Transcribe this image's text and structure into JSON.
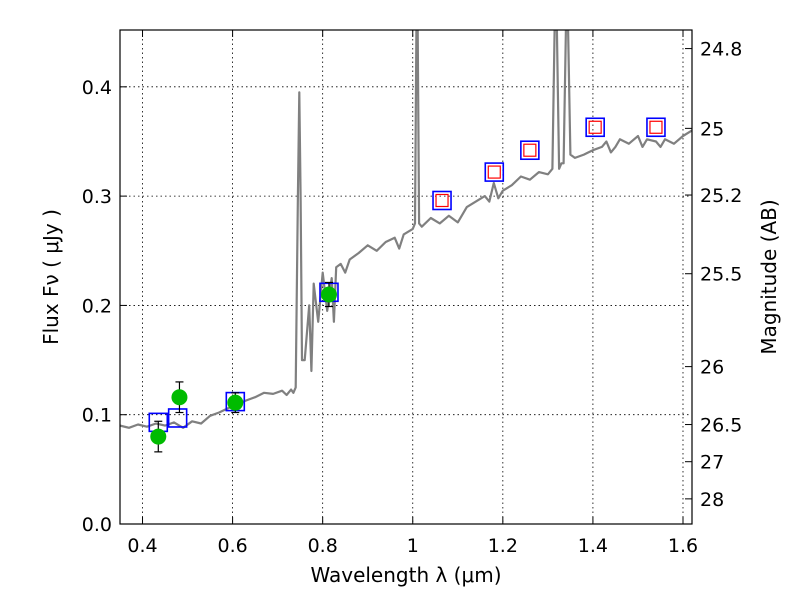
{
  "chart_data": {
    "type": "line",
    "xlabel": "Wavelength  λ (μm)",
    "ylabel": "Flux  Fν  ( μJy )",
    "y2label": "Magnitude (AB)",
    "xlim": [
      0.35,
      1.62
    ],
    "ylim": [
      0.0,
      0.452
    ],
    "grid": true,
    "x_ticks": [
      0.4,
      0.6,
      0.8,
      1.0,
      1.2,
      1.4,
      1.6
    ],
    "x_tick_labels": [
      "0.4",
      "0.6",
      "0.8",
      "1",
      "1.2",
      "1.4",
      "1.6"
    ],
    "y_ticks": [
      0.0,
      0.1,
      0.2,
      0.3,
      0.4
    ],
    "y_tick_labels": [
      "0.0",
      "0.1",
      "0.2",
      "0.3",
      "0.4"
    ],
    "y2_ticks": [
      {
        "label": "24.8",
        "flux": 0.435
      },
      {
        "label": "25",
        "flux": 0.362
      },
      {
        "label": "25.2",
        "flux": 0.301
      },
      {
        "label": "25.5",
        "flux": 0.229
      },
      {
        "label": "26",
        "flux": 0.144
      },
      {
        "label": "26.5",
        "flux": 0.091
      },
      {
        "label": "27",
        "flux": 0.057
      },
      {
        "label": "28",
        "flux": 0.023
      }
    ],
    "series": [
      {
        "name": "model_spectrum",
        "kind": "line",
        "color": "#808080",
        "points": [
          [
            0.35,
            0.09
          ],
          [
            0.37,
            0.088
          ],
          [
            0.39,
            0.091
          ],
          [
            0.41,
            0.089
          ],
          [
            0.43,
            0.092
          ],
          [
            0.45,
            0.09
          ],
          [
            0.47,
            0.093
          ],
          [
            0.49,
            0.088
          ],
          [
            0.51,
            0.094
          ],
          [
            0.53,
            0.092
          ],
          [
            0.55,
            0.099
          ],
          [
            0.57,
            0.102
          ],
          [
            0.59,
            0.106
          ],
          [
            0.61,
            0.11
          ],
          [
            0.63,
            0.113
          ],
          [
            0.65,
            0.116
          ],
          [
            0.67,
            0.12
          ],
          [
            0.69,
            0.119
          ],
          [
            0.71,
            0.122
          ],
          [
            0.72,
            0.118
          ],
          [
            0.73,
            0.123
          ],
          [
            0.735,
            0.12
          ],
          [
            0.74,
            0.125
          ],
          [
            0.745,
            0.3
          ],
          [
            0.748,
            0.395
          ],
          [
            0.751,
            0.3
          ],
          [
            0.754,
            0.15
          ],
          [
            0.76,
            0.15
          ],
          [
            0.77,
            0.2
          ],
          [
            0.775,
            0.14
          ],
          [
            0.78,
            0.22
          ],
          [
            0.79,
            0.185
          ],
          [
            0.8,
            0.23
          ],
          [
            0.81,
            0.195
          ],
          [
            0.82,
            0.225
          ],
          [
            0.825,
            0.185
          ],
          [
            0.83,
            0.235
          ],
          [
            0.84,
            0.238
          ],
          [
            0.85,
            0.23
          ],
          [
            0.86,
            0.242
          ],
          [
            0.88,
            0.248
          ],
          [
            0.9,
            0.255
          ],
          [
            0.92,
            0.25
          ],
          [
            0.94,
            0.258
          ],
          [
            0.96,
            0.262
          ],
          [
            0.97,
            0.252
          ],
          [
            0.98,
            0.265
          ],
          [
            1.0,
            0.27
          ],
          [
            1.005,
            0.275
          ],
          [
            1.008,
            0.452
          ],
          [
            1.011,
            0.452
          ],
          [
            1.014,
            0.275
          ],
          [
            1.02,
            0.272
          ],
          [
            1.04,
            0.28
          ],
          [
            1.06,
            0.275
          ],
          [
            1.08,
            0.282
          ],
          [
            1.1,
            0.276
          ],
          [
            1.12,
            0.29
          ],
          [
            1.14,
            0.295
          ],
          [
            1.16,
            0.3
          ],
          [
            1.17,
            0.295
          ],
          [
            1.18,
            0.312
          ],
          [
            1.19,
            0.298
          ],
          [
            1.2,
            0.305
          ],
          [
            1.22,
            0.31
          ],
          [
            1.24,
            0.318
          ],
          [
            1.26,
            0.315
          ],
          [
            1.28,
            0.322
          ],
          [
            1.3,
            0.32
          ],
          [
            1.31,
            0.325
          ],
          [
            1.315,
            0.452
          ],
          [
            1.32,
            0.452
          ],
          [
            1.325,
            0.325
          ],
          [
            1.33,
            0.33
          ],
          [
            1.335,
            0.33
          ],
          [
            1.34,
            0.452
          ],
          [
            1.345,
            0.452
          ],
          [
            1.35,
            0.338
          ],
          [
            1.36,
            0.335
          ],
          [
            1.38,
            0.338
          ],
          [
            1.39,
            0.34
          ],
          [
            1.4,
            0.342
          ],
          [
            1.42,
            0.345
          ],
          [
            1.43,
            0.35
          ],
          [
            1.44,
            0.34
          ],
          [
            1.45,
            0.345
          ],
          [
            1.46,
            0.352
          ],
          [
            1.47,
            0.35
          ],
          [
            1.48,
            0.348
          ],
          [
            1.5,
            0.355
          ],
          [
            1.51,
            0.345
          ],
          [
            1.52,
            0.352
          ],
          [
            1.54,
            0.35
          ],
          [
            1.55,
            0.345
          ],
          [
            1.56,
            0.352
          ],
          [
            1.58,
            0.348
          ],
          [
            1.6,
            0.355
          ],
          [
            1.62,
            0.36
          ]
        ]
      },
      {
        "name": "model_photometry",
        "kind": "open_square",
        "color": "#0000ff",
        "points": [
          [
            0.435,
            0.093
          ],
          [
            0.478,
            0.097
          ],
          [
            0.606,
            0.112
          ],
          [
            0.814,
            0.212
          ],
          [
            1.065,
            0.296
          ],
          [
            1.181,
            0.322
          ],
          [
            1.26,
            0.342
          ],
          [
            1.405,
            0.363
          ],
          [
            1.54,
            0.363
          ]
        ]
      },
      {
        "name": "observed_upper_limits",
        "kind": "open_square",
        "color": "#ff0000",
        "points": [
          [
            1.065,
            0.296
          ],
          [
            1.181,
            0.322
          ],
          [
            1.26,
            0.342
          ],
          [
            1.405,
            0.363
          ],
          [
            1.54,
            0.363
          ]
        ]
      },
      {
        "name": "observed_photometry",
        "kind": "filled_circle",
        "color": "#00bb00",
        "points": [
          [
            0.435,
            0.08
          ],
          [
            0.482,
            0.116
          ],
          [
            0.606,
            0.111
          ],
          [
            0.814,
            0.21
          ]
        ],
        "errors": [
          0.014,
          0.014,
          0.009,
          0.011
        ]
      }
    ]
  }
}
